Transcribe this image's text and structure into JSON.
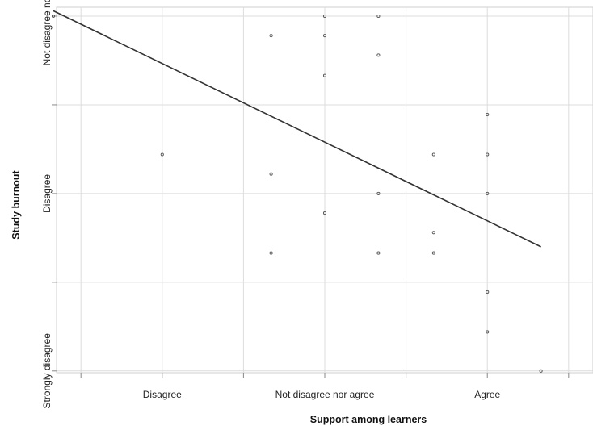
{
  "chart_data": {
    "type": "scatter",
    "title": "",
    "xlabel": "Support among learners",
    "ylabel": "Study burnout",
    "xlim": [
      1.35,
      4.65
    ],
    "ylim": [
      0.98,
      5.1
    ],
    "x_ticks": [
      1.5,
      2.0,
      2.5,
      3.0,
      3.5,
      4.0,
      4.5
    ],
    "x_tick_labels": [
      {
        "value": 2.0,
        "label": "Disagree"
      },
      {
        "value": 3.0,
        "label": "Not disagree nor agree"
      },
      {
        "value": 4.0,
        "label": "Agree"
      }
    ],
    "y_ticks": [
      1.0,
      2.0,
      3.0,
      4.0,
      5.0
    ],
    "y_tick_labels": [
      {
        "value": 1.0,
        "label": "Strongly disagree"
      },
      {
        "value": 3.0,
        "label": "Disagree"
      },
      {
        "value": 5.0,
        "label": "Not disagree nor agree"
      }
    ],
    "grid": true,
    "points": [
      {
        "x": 1.33,
        "y": 5.0
      },
      {
        "x": 2.0,
        "y": 3.44
      },
      {
        "x": 2.67,
        "y": 4.78
      },
      {
        "x": 2.67,
        "y": 3.22
      },
      {
        "x": 2.67,
        "y": 2.33
      },
      {
        "x": 3.0,
        "y": 5.0
      },
      {
        "x": 3.0,
        "y": 4.78
      },
      {
        "x": 3.0,
        "y": 4.33
      },
      {
        "x": 3.0,
        "y": 2.78
      },
      {
        "x": 3.33,
        "y": 5.0
      },
      {
        "x": 3.33,
        "y": 4.56
      },
      {
        "x": 3.33,
        "y": 3.0
      },
      {
        "x": 3.33,
        "y": 2.33
      },
      {
        "x": 3.67,
        "y": 3.44
      },
      {
        "x": 3.67,
        "y": 2.56
      },
      {
        "x": 3.67,
        "y": 2.33
      },
      {
        "x": 4.0,
        "y": 3.89
      },
      {
        "x": 4.0,
        "y": 3.44
      },
      {
        "x": 4.0,
        "y": 3.0
      },
      {
        "x": 4.0,
        "y": 1.89
      },
      {
        "x": 4.0,
        "y": 1.44
      },
      {
        "x": 4.33,
        "y": 1.0
      }
    ],
    "fit_line": {
      "x": [
        1.33,
        4.33
      ],
      "y": [
        5.06,
        2.4
      ]
    },
    "colors": {
      "points": "#555555",
      "line": "#333333",
      "grid": "#dcdcdc",
      "axis": "#888888"
    }
  }
}
